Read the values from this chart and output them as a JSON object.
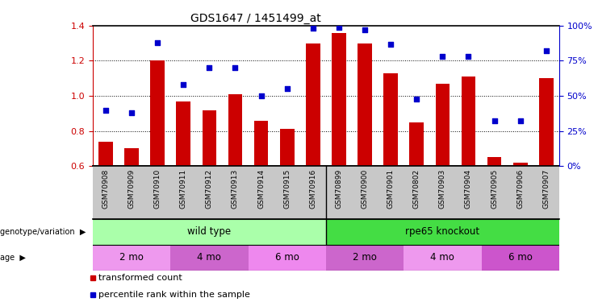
{
  "title": "GDS1647 / 1451499_at",
  "samples": [
    "GSM70908",
    "GSM70909",
    "GSM70910",
    "GSM70911",
    "GSM70912",
    "GSM70913",
    "GSM70914",
    "GSM70915",
    "GSM70916",
    "GSM70899",
    "GSM70900",
    "GSM70901",
    "GSM70802",
    "GSM70903",
    "GSM70904",
    "GSM70905",
    "GSM70906",
    "GSM70907"
  ],
  "transformed_count": [
    0.74,
    0.7,
    1.2,
    0.97,
    0.92,
    1.01,
    0.86,
    0.81,
    1.3,
    1.36,
    1.3,
    1.13,
    0.85,
    1.07,
    1.11,
    0.65,
    0.62,
    1.1
  ],
  "percentile_rank": [
    40,
    38,
    88,
    58,
    70,
    70,
    50,
    55,
    98,
    99,
    97,
    87,
    48,
    78,
    78,
    32,
    32,
    82
  ],
  "ylim_left": [
    0.6,
    1.4
  ],
  "ylim_right": [
    0,
    100
  ],
  "yticks_left": [
    0.6,
    0.8,
    1.0,
    1.2,
    1.4
  ],
  "yticks_right": [
    0,
    25,
    50,
    75,
    100
  ],
  "ytick_labels_right": [
    "0%",
    "25%",
    "50%",
    "75%",
    "100%"
  ],
  "bar_color": "#cc0000",
  "dot_color": "#0000cc",
  "tick_bg_color": "#c8c8c8",
  "wild_type_color": "#aaffaa",
  "rpe65_color": "#44dd44",
  "age_color1": "#dd88ee",
  "age_color2": "#cc66dd",
  "genotype_groups": [
    {
      "label": "wild type",
      "start": 0,
      "end": 8
    },
    {
      "label": "rpe65 knockout",
      "start": 9,
      "end": 17
    }
  ],
  "age_groups": [
    {
      "label": "2 mo",
      "start": 0,
      "end": 2
    },
    {
      "label": "4 mo",
      "start": 3,
      "end": 5
    },
    {
      "label": "6 mo",
      "start": 6,
      "end": 8
    },
    {
      "label": "2 mo",
      "start": 9,
      "end": 11
    },
    {
      "label": "4 mo",
      "start": 12,
      "end": 14
    },
    {
      "label": "6 mo",
      "start": 15,
      "end": 17
    }
  ]
}
